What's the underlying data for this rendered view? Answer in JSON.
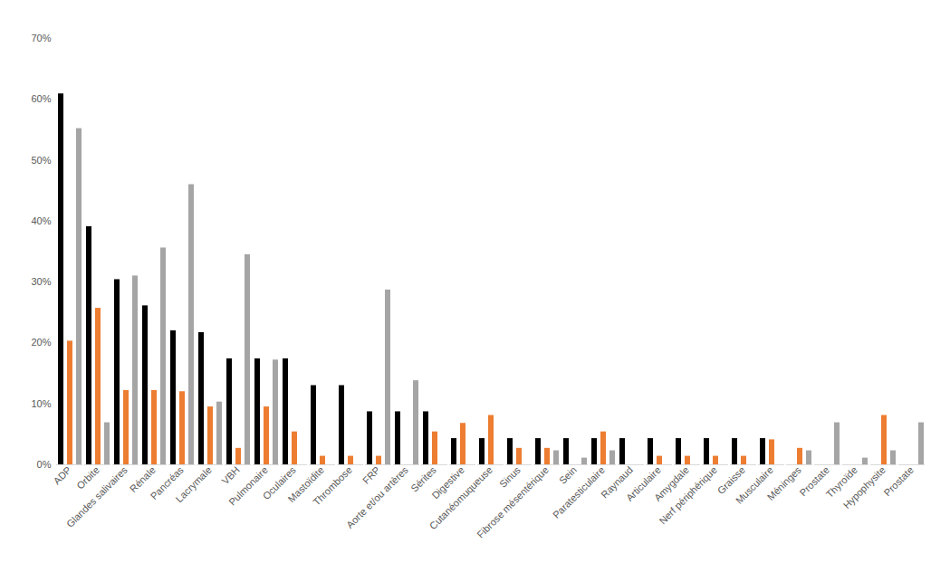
{
  "chart_data": {
    "type": "bar",
    "categories": [
      "ADP",
      "Orbite",
      "Glandes salivaires",
      "Rénale",
      "Pancréas",
      "Lacrymale",
      "VBH",
      "Pulmonaire",
      "Oculaires",
      "Mastoïdite",
      "Thrombose",
      "FRP",
      "Aorte et/ou artères",
      "Sérites",
      "Digestive",
      "Cutanéomuqueuse",
      "Sinus",
      "Fibrose mésentérique",
      "Sein",
      "Paratesticulaire",
      "Raynaud",
      "Articulaire",
      "Amygdale",
      "Nerf périphérique",
      "Graisse",
      "Musculaire",
      "Méninges",
      "Prostate",
      "Thyroïde",
      "Hypophysite",
      "Prostate"
    ],
    "series": [
      {
        "color": "#000000",
        "values": [
          60.9,
          39.1,
          30.4,
          26.1,
          22.0,
          21.7,
          17.4,
          17.4,
          17.4,
          13.0,
          13.0,
          8.7,
          8.7,
          8.7,
          4.3,
          4.3,
          4.3,
          4.3,
          4.3,
          4.3,
          4.3,
          4.3,
          4.3,
          4.3,
          4.3,
          4.3,
          0,
          0,
          0,
          0,
          0
        ]
      },
      {
        "color": "#ed7d31",
        "values": [
          20.3,
          25.7,
          12.2,
          12.2,
          12.0,
          9.5,
          2.7,
          9.5,
          5.4,
          1.4,
          1.4,
          1.4,
          0,
          5.4,
          6.8,
          8.1,
          2.7,
          2.7,
          0,
          5.4,
          0,
          1.4,
          1.4,
          1.4,
          1.4,
          4.1,
          2.7,
          0,
          0,
          8.1,
          0
        ]
      },
      {
        "color": "#a5a5a5",
        "values": [
          55.2,
          6.9,
          31.0,
          35.6,
          46.0,
          10.3,
          34.5,
          17.2,
          0,
          0,
          0,
          28.7,
          13.8,
          0,
          0,
          0,
          0,
          2.3,
          1.1,
          2.3,
          0,
          0,
          0,
          0,
          0,
          0,
          2.3,
          6.9,
          1.1,
          2.3,
          6.9
        ]
      }
    ],
    "ylim": [
      0,
      70
    ],
    "yticks": [
      {
        "value": 0,
        "label": "0%"
      },
      {
        "value": 10,
        "label": "10%"
      },
      {
        "value": 20,
        "label": "20%"
      },
      {
        "value": 30,
        "label": "30%"
      },
      {
        "value": 40,
        "label": "40%"
      },
      {
        "value": 50,
        "label": "50%"
      },
      {
        "value": 60,
        "label": "60%"
      },
      {
        "value": 70,
        "label": "70%"
      }
    ],
    "grid": false
  }
}
